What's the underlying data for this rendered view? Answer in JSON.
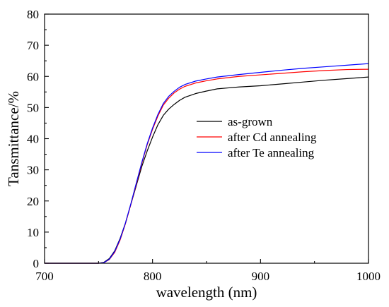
{
  "chart_data": {
    "type": "line",
    "title": "",
    "xlabel": "wavelength (nm)",
    "ylabel": "Tansmittance/%",
    "xlim": [
      700,
      1000
    ],
    "ylim": [
      0,
      80
    ],
    "x_ticks": [
      700,
      800,
      900,
      1000
    ],
    "y_ticks": [
      0,
      10,
      20,
      30,
      40,
      50,
      60,
      70,
      80
    ],
    "grid": false,
    "legend": "center-right",
    "series": [
      {
        "name": "as-grown",
        "color": "#000000",
        "x": [
          700,
          750,
          755,
          760,
          765,
          770,
          775,
          780,
          785,
          790,
          795,
          800,
          805,
          810,
          815,
          820,
          825,
          830,
          840,
          850,
          860,
          870,
          880,
          900,
          920,
          940,
          960,
          980,
          1000
        ],
        "y": [
          0,
          0,
          0.3,
          1.5,
          4,
          8,
          13,
          19,
          25,
          31,
          36,
          40.5,
          44.5,
          47.5,
          49.5,
          51,
          52.3,
          53.3,
          54.5,
          55.3,
          56,
          56.3,
          56.6,
          57,
          57.6,
          58.2,
          58.8,
          59.3,
          59.8
        ]
      },
      {
        "name": "after Cd annealing",
        "color": "#ff0000",
        "x": [
          700,
          750,
          755,
          760,
          765,
          770,
          775,
          780,
          785,
          790,
          795,
          800,
          805,
          810,
          815,
          820,
          825,
          830,
          840,
          850,
          860,
          870,
          880,
          900,
          920,
          940,
          960,
          980,
          1000
        ],
        "y": [
          0,
          0,
          0.2,
          1.2,
          3.5,
          7.5,
          12.8,
          19,
          25.5,
          32,
          38,
          43,
          47.3,
          50.8,
          53,
          54.7,
          55.9,
          56.8,
          57.9,
          58.6,
          59.2,
          59.6,
          60,
          60.5,
          61,
          61.5,
          61.9,
          62.2,
          62.3
        ]
      },
      {
        "name": "after Te annealing",
        "color": "#0000ff",
        "x": [
          700,
          750,
          755,
          760,
          765,
          770,
          775,
          780,
          785,
          790,
          795,
          800,
          805,
          810,
          815,
          820,
          825,
          830,
          840,
          850,
          860,
          870,
          880,
          900,
          920,
          940,
          960,
          980,
          1000
        ],
        "y": [
          0,
          0,
          0.2,
          1.3,
          3.8,
          7.8,
          13,
          19.2,
          25.8,
          32.3,
          38.3,
          43.4,
          47.8,
          51.3,
          53.6,
          55.2,
          56.5,
          57.4,
          58.5,
          59.2,
          59.8,
          60.2,
          60.6,
          61.3,
          62,
          62.6,
          63.1,
          63.6,
          64.1
        ]
      }
    ]
  }
}
